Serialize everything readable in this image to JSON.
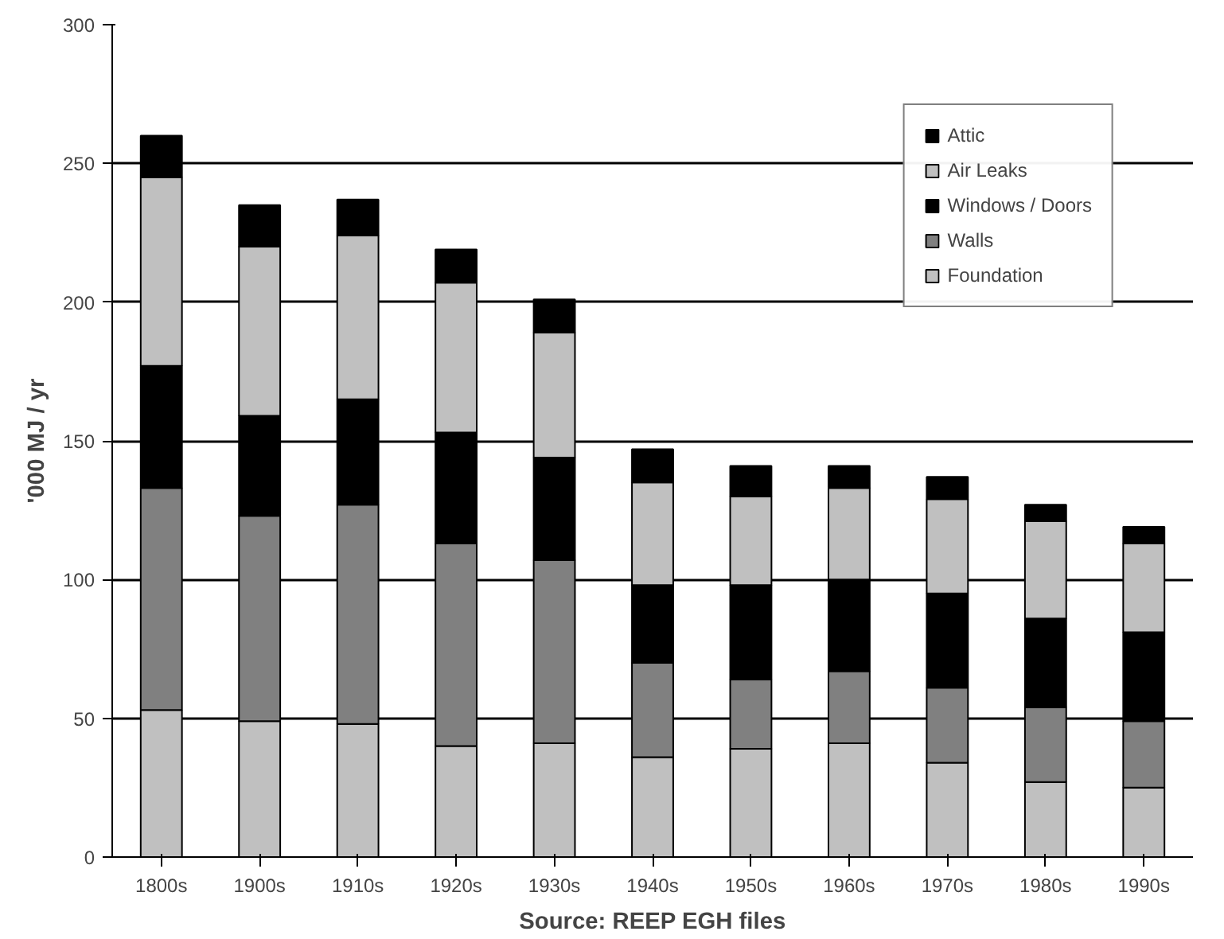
{
  "chart_data": {
    "type": "bar",
    "stacked": true,
    "categories": [
      "1800s",
      "1900s",
      "1910s",
      "1920s",
      "1930s",
      "1940s",
      "1950s",
      "1960s",
      "1970s",
      "1980s",
      "1990s"
    ],
    "series": [
      {
        "name": "Foundation",
        "color": "#c0c0c0",
        "values": [
          53,
          49,
          48,
          40,
          41,
          36,
          39,
          41,
          34,
          27,
          25
        ]
      },
      {
        "name": "Walls",
        "color": "#808080",
        "values": [
          80,
          74,
          79,
          73,
          66,
          34,
          25,
          26,
          27,
          27,
          24
        ]
      },
      {
        "name": "Windows / Doors",
        "color": "#000000",
        "values": [
          44,
          36,
          38,
          40,
          37,
          28,
          34,
          33,
          34,
          32,
          32
        ]
      },
      {
        "name": "Air Leaks",
        "color": "#c0c0c0",
        "values": [
          68,
          61,
          59,
          54,
          45,
          37,
          32,
          33,
          34,
          35,
          32
        ]
      },
      {
        "name": "Attic",
        "color": "#000000",
        "values": [
          15,
          15,
          13,
          12,
          12,
          12,
          11,
          8,
          8,
          6,
          6
        ]
      }
    ],
    "ylim": [
      0,
      300
    ],
    "yticks": [
      0,
      50,
      100,
      150,
      200,
      250,
      300
    ],
    "grid": "y",
    "legend": "top right",
    "xlabel": "Source: REEP EGH files",
    "ylabel": "'000 MJ / yr"
  }
}
